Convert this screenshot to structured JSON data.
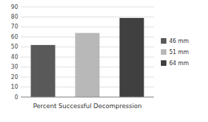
{
  "chart_data": {
    "type": "bar",
    "x_label": "Percent Successful Decompression",
    "categories": [
      "46 mm",
      "51 mm",
      "64 mm"
    ],
    "values": [
      52,
      64,
      79
    ],
    "colors": [
      "#595959",
      "#b8b8b8",
      "#404040"
    ],
    "ylim": [
      0,
      90
    ],
    "yticks": [
      0,
      10,
      20,
      30,
      40,
      50,
      60,
      70,
      80,
      90
    ],
    "grid": true,
    "legend": "right",
    "tick_labels": "y"
  }
}
